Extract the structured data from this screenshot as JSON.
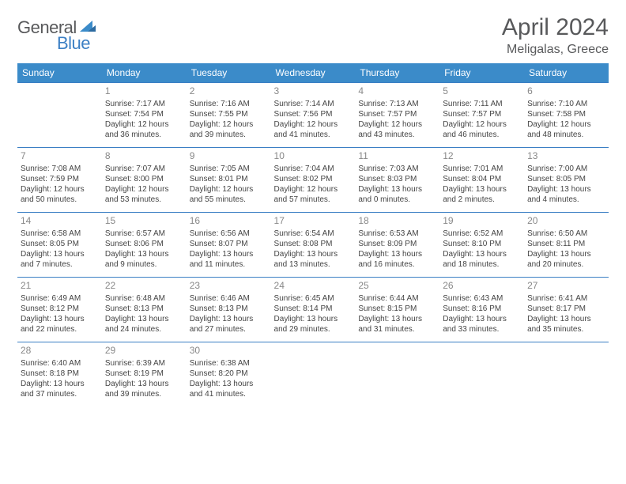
{
  "logo": {
    "general": "General",
    "blue": "Blue",
    "accent_color": "#3b8bc9",
    "text_color": "#58595b"
  },
  "title": "April 2024",
  "location": "Meligalas, Greece",
  "colors": {
    "header_bg": "#3b8bc9",
    "header_text": "#ffffff",
    "rule": "#3b7fc4",
    "body_text": "#444444",
    "daynum": "#888888",
    "title_text": "#58595b"
  },
  "days_of_week": [
    "Sunday",
    "Monday",
    "Tuesday",
    "Wednesday",
    "Thursday",
    "Friday",
    "Saturday"
  ],
  "weeks": [
    [
      null,
      {
        "n": "1",
        "sr": "Sunrise: 7:17 AM",
        "ss": "Sunset: 7:54 PM",
        "d1": "Daylight: 12 hours",
        "d2": "and 36 minutes."
      },
      {
        "n": "2",
        "sr": "Sunrise: 7:16 AM",
        "ss": "Sunset: 7:55 PM",
        "d1": "Daylight: 12 hours",
        "d2": "and 39 minutes."
      },
      {
        "n": "3",
        "sr": "Sunrise: 7:14 AM",
        "ss": "Sunset: 7:56 PM",
        "d1": "Daylight: 12 hours",
        "d2": "and 41 minutes."
      },
      {
        "n": "4",
        "sr": "Sunrise: 7:13 AM",
        "ss": "Sunset: 7:57 PM",
        "d1": "Daylight: 12 hours",
        "d2": "and 43 minutes."
      },
      {
        "n": "5",
        "sr": "Sunrise: 7:11 AM",
        "ss": "Sunset: 7:57 PM",
        "d1": "Daylight: 12 hours",
        "d2": "and 46 minutes."
      },
      {
        "n": "6",
        "sr": "Sunrise: 7:10 AM",
        "ss": "Sunset: 7:58 PM",
        "d1": "Daylight: 12 hours",
        "d2": "and 48 minutes."
      }
    ],
    [
      {
        "n": "7",
        "sr": "Sunrise: 7:08 AM",
        "ss": "Sunset: 7:59 PM",
        "d1": "Daylight: 12 hours",
        "d2": "and 50 minutes."
      },
      {
        "n": "8",
        "sr": "Sunrise: 7:07 AM",
        "ss": "Sunset: 8:00 PM",
        "d1": "Daylight: 12 hours",
        "d2": "and 53 minutes."
      },
      {
        "n": "9",
        "sr": "Sunrise: 7:05 AM",
        "ss": "Sunset: 8:01 PM",
        "d1": "Daylight: 12 hours",
        "d2": "and 55 minutes."
      },
      {
        "n": "10",
        "sr": "Sunrise: 7:04 AM",
        "ss": "Sunset: 8:02 PM",
        "d1": "Daylight: 12 hours",
        "d2": "and 57 minutes."
      },
      {
        "n": "11",
        "sr": "Sunrise: 7:03 AM",
        "ss": "Sunset: 8:03 PM",
        "d1": "Daylight: 13 hours",
        "d2": "and 0 minutes."
      },
      {
        "n": "12",
        "sr": "Sunrise: 7:01 AM",
        "ss": "Sunset: 8:04 PM",
        "d1": "Daylight: 13 hours",
        "d2": "and 2 minutes."
      },
      {
        "n": "13",
        "sr": "Sunrise: 7:00 AM",
        "ss": "Sunset: 8:05 PM",
        "d1": "Daylight: 13 hours",
        "d2": "and 4 minutes."
      }
    ],
    [
      {
        "n": "14",
        "sr": "Sunrise: 6:58 AM",
        "ss": "Sunset: 8:05 PM",
        "d1": "Daylight: 13 hours",
        "d2": "and 7 minutes."
      },
      {
        "n": "15",
        "sr": "Sunrise: 6:57 AM",
        "ss": "Sunset: 8:06 PM",
        "d1": "Daylight: 13 hours",
        "d2": "and 9 minutes."
      },
      {
        "n": "16",
        "sr": "Sunrise: 6:56 AM",
        "ss": "Sunset: 8:07 PM",
        "d1": "Daylight: 13 hours",
        "d2": "and 11 minutes."
      },
      {
        "n": "17",
        "sr": "Sunrise: 6:54 AM",
        "ss": "Sunset: 8:08 PM",
        "d1": "Daylight: 13 hours",
        "d2": "and 13 minutes."
      },
      {
        "n": "18",
        "sr": "Sunrise: 6:53 AM",
        "ss": "Sunset: 8:09 PM",
        "d1": "Daylight: 13 hours",
        "d2": "and 16 minutes."
      },
      {
        "n": "19",
        "sr": "Sunrise: 6:52 AM",
        "ss": "Sunset: 8:10 PM",
        "d1": "Daylight: 13 hours",
        "d2": "and 18 minutes."
      },
      {
        "n": "20",
        "sr": "Sunrise: 6:50 AM",
        "ss": "Sunset: 8:11 PM",
        "d1": "Daylight: 13 hours",
        "d2": "and 20 minutes."
      }
    ],
    [
      {
        "n": "21",
        "sr": "Sunrise: 6:49 AM",
        "ss": "Sunset: 8:12 PM",
        "d1": "Daylight: 13 hours",
        "d2": "and 22 minutes."
      },
      {
        "n": "22",
        "sr": "Sunrise: 6:48 AM",
        "ss": "Sunset: 8:13 PM",
        "d1": "Daylight: 13 hours",
        "d2": "and 24 minutes."
      },
      {
        "n": "23",
        "sr": "Sunrise: 6:46 AM",
        "ss": "Sunset: 8:13 PM",
        "d1": "Daylight: 13 hours",
        "d2": "and 27 minutes."
      },
      {
        "n": "24",
        "sr": "Sunrise: 6:45 AM",
        "ss": "Sunset: 8:14 PM",
        "d1": "Daylight: 13 hours",
        "d2": "and 29 minutes."
      },
      {
        "n": "25",
        "sr": "Sunrise: 6:44 AM",
        "ss": "Sunset: 8:15 PM",
        "d1": "Daylight: 13 hours",
        "d2": "and 31 minutes."
      },
      {
        "n": "26",
        "sr": "Sunrise: 6:43 AM",
        "ss": "Sunset: 8:16 PM",
        "d1": "Daylight: 13 hours",
        "d2": "and 33 minutes."
      },
      {
        "n": "27",
        "sr": "Sunrise: 6:41 AM",
        "ss": "Sunset: 8:17 PM",
        "d1": "Daylight: 13 hours",
        "d2": "and 35 minutes."
      }
    ],
    [
      {
        "n": "28",
        "sr": "Sunrise: 6:40 AM",
        "ss": "Sunset: 8:18 PM",
        "d1": "Daylight: 13 hours",
        "d2": "and 37 minutes."
      },
      {
        "n": "29",
        "sr": "Sunrise: 6:39 AM",
        "ss": "Sunset: 8:19 PM",
        "d1": "Daylight: 13 hours",
        "d2": "and 39 minutes."
      },
      {
        "n": "30",
        "sr": "Sunrise: 6:38 AM",
        "ss": "Sunset: 8:20 PM",
        "d1": "Daylight: 13 hours",
        "d2": "and 41 minutes."
      },
      null,
      null,
      null,
      null
    ]
  ]
}
